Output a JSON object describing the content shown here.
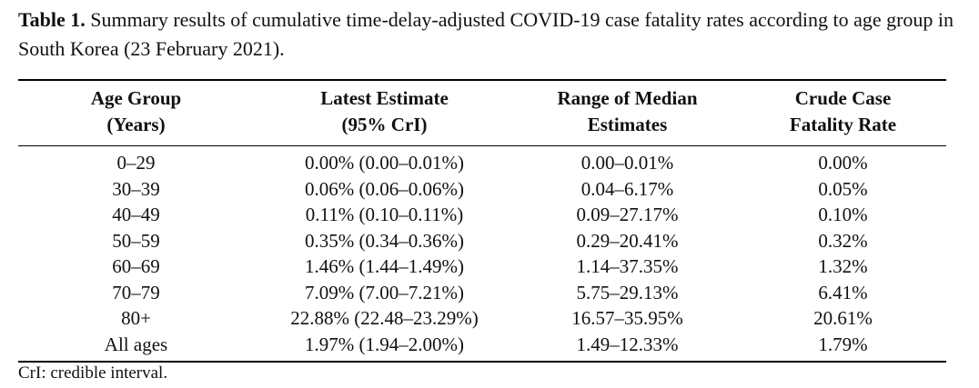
{
  "caption": {
    "label": "Table 1.",
    "text": "Summary results of cumulative time-delay-adjusted COVID-19 case fatality rates according to age group in South Korea (23 February 2021)."
  },
  "table": {
    "headers": [
      {
        "line1": "Age Group",
        "line2": "(Years)"
      },
      {
        "line1": "Latest Estimate",
        "line2": "(95% CrI)"
      },
      {
        "line1": "Range of Median",
        "line2": "Estimates"
      },
      {
        "line1": "Crude Case",
        "line2": "Fatality Rate"
      }
    ],
    "rows": [
      [
        "0–29",
        "0.00% (0.00–0.01%)",
        "0.00–0.01%",
        "0.00%"
      ],
      [
        "30–39",
        "0.06% (0.06–0.06%)",
        "0.04–6.17%",
        "0.05%"
      ],
      [
        "40–49",
        "0.11% (0.10–0.11%)",
        "0.09–27.17%",
        "0.10%"
      ],
      [
        "50–59",
        "0.35% (0.34–0.36%)",
        "0.29–20.41%",
        "0.32%"
      ],
      [
        "60–69",
        "1.46% (1.44–1.49%)",
        "1.14–37.35%",
        "1.32%"
      ],
      [
        "70–79",
        "7.09% (7.00–7.21%)",
        "5.75–29.13%",
        "6.41%"
      ],
      [
        "80+",
        "22.88% (22.48–23.29%)",
        "16.57–35.95%",
        "20.61%"
      ],
      [
        "All ages",
        "1.97% (1.94–2.00%)",
        "1.49–12.33%",
        "1.79%"
      ]
    ]
  },
  "footnote": "CrI: credible interval."
}
